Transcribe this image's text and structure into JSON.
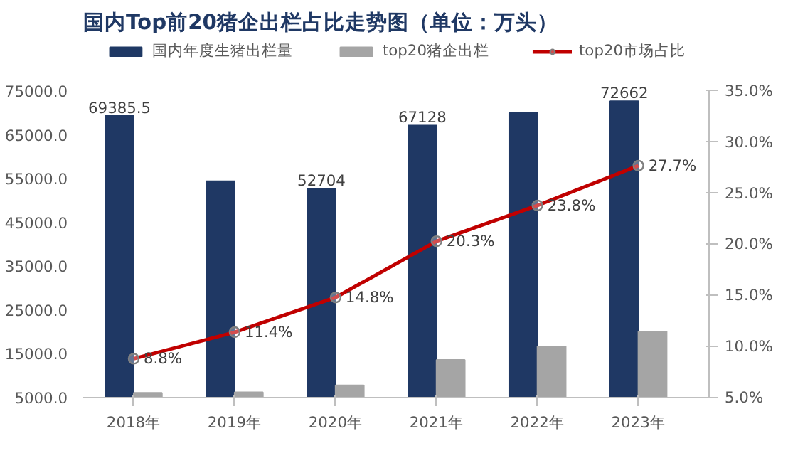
{
  "chart_data": {
    "type": "bar",
    "title": "国内Top前20猪企出栏占比走势图（单位：万头）",
    "categories": [
      "2018年",
      "2019年",
      "2020年",
      "2021年",
      "2022年",
      "2023年"
    ],
    "series": [
      {
        "name": "国内年度生猪出栏量",
        "color": "#1f3864",
        "values": [
          69385.5,
          54400,
          52704,
          67128,
          70000,
          72662
        ],
        "value_labels": [
          "69385.5",
          null,
          "52704",
          "67128",
          null,
          "72662"
        ]
      },
      {
        "name": "top20猪企出栏",
        "color": "#a5a5a5",
        "values": [
          6100,
          6200,
          7800,
          13600,
          16700,
          20100
        ]
      },
      {
        "name": "top20市场占比",
        "type": "line",
        "axis": "y2",
        "color": "#c00000",
        "marker": "circle",
        "values": [
          8.8,
          11.4,
          14.8,
          20.3,
          23.8,
          27.7
        ],
        "value_labels": [
          "8.8%",
          "11.4%",
          "14.8%",
          "20.3%",
          "23.8%",
          "27.7%"
        ]
      }
    ],
    "ylim": [
      5000,
      75000
    ],
    "yticks": [
      {
        "value": 5000,
        "label": "5000.0"
      },
      {
        "value": 15000,
        "label": "15000.0"
      },
      {
        "value": 25000,
        "label": "25000.0"
      },
      {
        "value": 35000,
        "label": "35000.0"
      },
      {
        "value": 45000,
        "label": "45000.0"
      },
      {
        "value": 55000,
        "label": "55000.0"
      },
      {
        "value": 65000,
        "label": "65000.0"
      },
      {
        "value": 75000,
        "label": "75000.0"
      }
    ],
    "y2lim": [
      5,
      35
    ],
    "y2ticks": [
      {
        "value": 5,
        "label": "5.0%"
      },
      {
        "value": 10,
        "label": "10.0%"
      },
      {
        "value": 15,
        "label": "15.0%"
      },
      {
        "value": 20,
        "label": "20.0%"
      },
      {
        "value": 25,
        "label": "25.0%"
      },
      {
        "value": 30,
        "label": "30.0%"
      },
      {
        "value": 35,
        "label": "35.0%"
      }
    ],
    "grid": false,
    "legend": "top"
  }
}
